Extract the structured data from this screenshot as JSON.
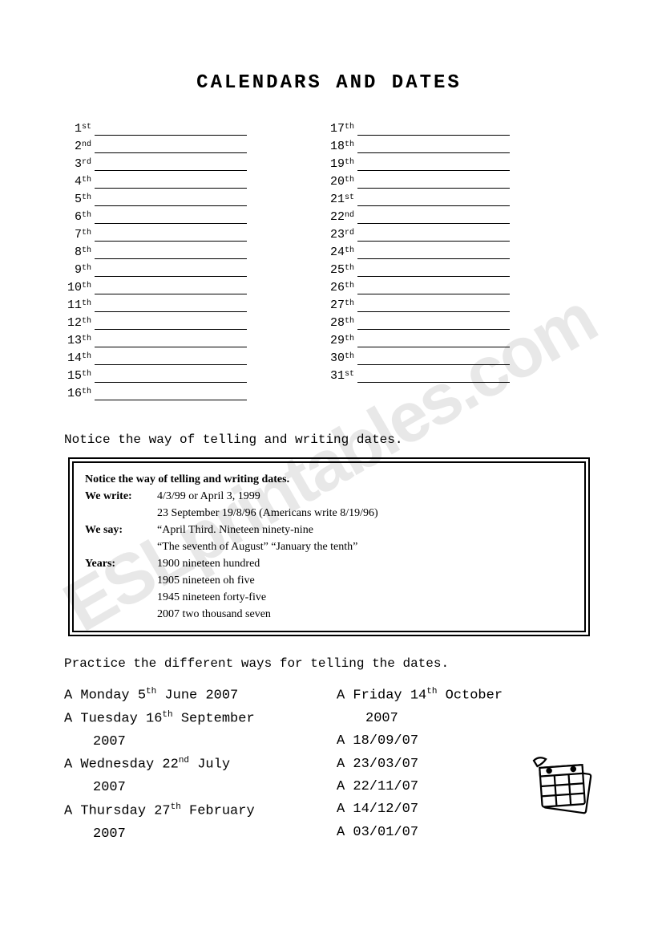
{
  "title": "CALENDARS AND DATES",
  "ordinals_left": [
    {
      "n": "1",
      "s": "st"
    },
    {
      "n": "2",
      "s": "nd"
    },
    {
      "n": "3",
      "s": "rd"
    },
    {
      "n": "4",
      "s": "th"
    },
    {
      "n": "5",
      "s": "th"
    },
    {
      "n": "6",
      "s": "th"
    },
    {
      "n": "7",
      "s": "th"
    },
    {
      "n": "8",
      "s": "th"
    },
    {
      "n": "9",
      "s": "th"
    },
    {
      "n": "10",
      "s": "th"
    },
    {
      "n": "11",
      "s": "th"
    },
    {
      "n": "12",
      "s": "th"
    },
    {
      "n": "13",
      "s": "th"
    },
    {
      "n": "14",
      "s": "th"
    },
    {
      "n": "15",
      "s": "th"
    },
    {
      "n": "16",
      "s": "th"
    }
  ],
  "ordinals_right": [
    {
      "n": "17",
      "s": "th"
    },
    {
      "n": "18",
      "s": "th"
    },
    {
      "n": "19",
      "s": "th"
    },
    {
      "n": "20",
      "s": "th"
    },
    {
      "n": "21",
      "s": "st"
    },
    {
      "n": "22",
      "s": "nd"
    },
    {
      "n": "23",
      "s": "rd"
    },
    {
      "n": "24",
      "s": "th"
    },
    {
      "n": "25",
      "s": "th"
    },
    {
      "n": "26",
      "s": "th"
    },
    {
      "n": "27",
      "s": "th"
    },
    {
      "n": "28",
      "s": "th"
    },
    {
      "n": "29",
      "s": "th"
    },
    {
      "n": "30",
      "s": "th"
    },
    {
      "n": "31",
      "s": "st"
    }
  ],
  "notice": "Notice the way of telling and writing dates.",
  "box": {
    "line0": "Notice the way of telling and writing dates.",
    "write_lbl": "We write:",
    "write_v1": "4/3/99 or April 3, 1999",
    "write_v2": "23 September        19/8/96 (Americans write 8/19/96)",
    "say_lbl": "We say:",
    "say_v1": "“April Third. Nineteen ninety-nine",
    "say_v2": "“The seventh of August”  “January the tenth”",
    "years_lbl": "Years:",
    "years_v1": "1900  nineteen hundred",
    "years_v2": "1905  nineteen oh five",
    "years_v3": "1945  nineteen forty-five",
    "years_v4": "2007  two thousand seven"
  },
  "practice_heading": "Practice the different ways for telling the dates.",
  "practice_left": [
    {
      "pre": "A Monday 5",
      "sup": "th",
      "post": " June 2007"
    },
    {
      "pre": "A Tuesday 16",
      "sup": "th",
      "post": " September"
    },
    {
      "pre": "2007",
      "indent": true
    },
    {
      "pre": "A Wednesday 22",
      "sup": "nd",
      "post": " July"
    },
    {
      "pre": "2007",
      "indent": true
    },
    {
      "pre": "A Thursday 27",
      "sup": "th",
      "post": " February"
    },
    {
      "pre": "2007",
      "indent": true
    }
  ],
  "practice_right": [
    {
      "pre": "A Friday 14",
      "sup": "th",
      "post": " October"
    },
    {
      "pre": "2007",
      "indent": true
    },
    {
      "pre": "A 18/09/07"
    },
    {
      "pre": "A 23/03/07"
    },
    {
      "pre": "A 22/11/07"
    },
    {
      "pre": "A 14/12/07"
    },
    {
      "pre": "A 03/01/07"
    }
  ],
  "watermark": "ESLprintables.com",
  "colors": {
    "text": "#000000",
    "bg": "#ffffff",
    "watermark": "rgba(0,0,0,0.09)"
  }
}
